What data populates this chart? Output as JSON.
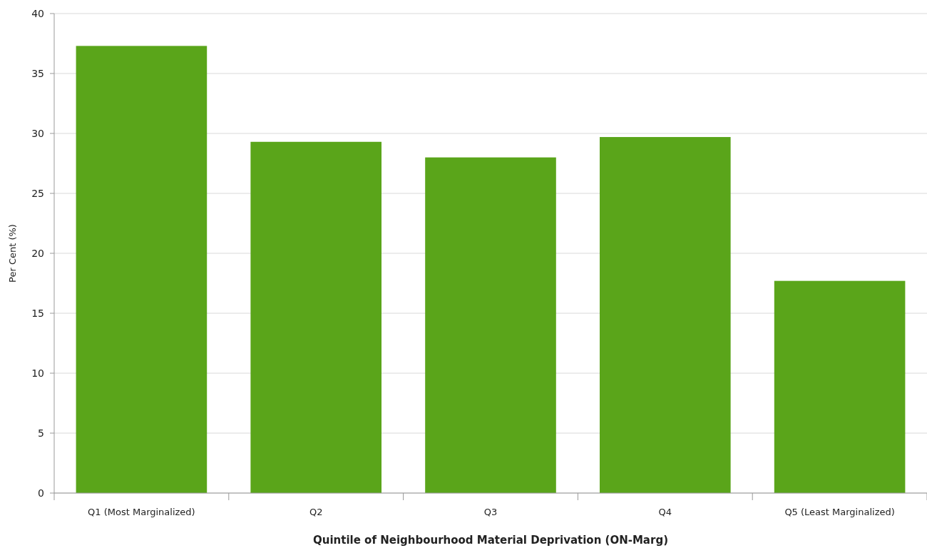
{
  "chart_data": {
    "type": "bar",
    "xlabel": "Quintile of Neighbourhood Material Deprivation (ON-Marg)",
    "ylabel": "Per Cent (%)",
    "categories": [
      "Q1 (Most Marginalized)",
      "Q2",
      "Q3",
      "Q4",
      "Q5 (Least Marginalized)"
    ],
    "values": [
      37.3,
      29.3,
      28.0,
      29.7,
      17.7
    ],
    "color": "#5aa51a",
    "ylim": [
      0,
      40
    ],
    "yticks": [
      0,
      5,
      10,
      15,
      20,
      25,
      30,
      35,
      40
    ],
    "grid": "y"
  }
}
